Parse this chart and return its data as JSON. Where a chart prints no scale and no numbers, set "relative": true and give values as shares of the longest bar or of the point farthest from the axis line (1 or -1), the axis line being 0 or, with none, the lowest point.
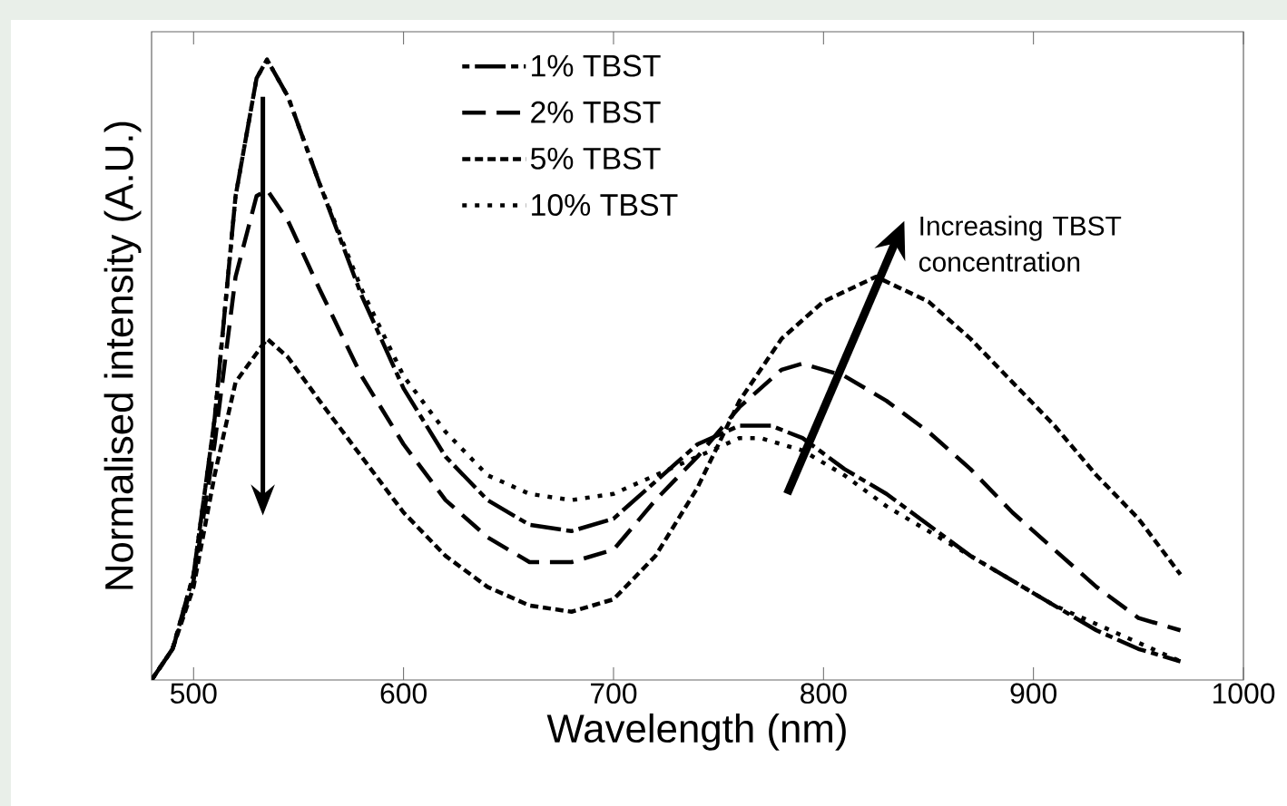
{
  "chart_data": {
    "type": "line",
    "xlabel": "Wavelength (nm)",
    "ylabel": "Normalised intensity (A.U.)",
    "relative": true,
    "xlim": [
      480,
      1000
    ],
    "xticks": [
      500,
      600,
      700,
      800,
      900,
      1000
    ],
    "legend": "top",
    "grid": false,
    "marker": "none",
    "annotations": [
      "Increasing TBST concentration"
    ],
    "series": [
      {
        "name": "1% TBST",
        "color": "#000000",
        "line_style": "dashdot",
        "x": [
          480,
          490,
          500,
          510,
          520,
          530,
          535,
          545,
          560,
          580,
          600,
          620,
          640,
          660,
          680,
          700,
          720,
          740,
          760,
          775,
          790,
          810,
          830,
          850,
          870,
          890,
          910,
          930,
          950,
          970
        ],
        "values": [
          0,
          0.05,
          0.17,
          0.42,
          0.78,
          0.97,
          1.0,
          0.94,
          0.8,
          0.62,
          0.47,
          0.36,
          0.29,
          0.25,
          0.24,
          0.26,
          0.32,
          0.38,
          0.41,
          0.41,
          0.39,
          0.34,
          0.3,
          0.25,
          0.2,
          0.16,
          0.12,
          0.08,
          0.05,
          0.03
        ]
      },
      {
        "name": "2% TBST",
        "color": "#000000",
        "line_style": "longdashed",
        "x": [
          480,
          490,
          500,
          510,
          520,
          530,
          535,
          545,
          560,
          580,
          600,
          620,
          640,
          660,
          680,
          700,
          720,
          740,
          760,
          780,
          790,
          810,
          830,
          850,
          870,
          890,
          910,
          930,
          950,
          970
        ],
        "values": [
          0,
          0.05,
          0.16,
          0.38,
          0.65,
          0.78,
          0.79,
          0.74,
          0.63,
          0.49,
          0.38,
          0.29,
          0.23,
          0.19,
          0.19,
          0.21,
          0.29,
          0.36,
          0.44,
          0.5,
          0.51,
          0.49,
          0.45,
          0.4,
          0.34,
          0.27,
          0.21,
          0.15,
          0.1,
          0.08
        ]
      },
      {
        "name": "5% TBST",
        "color": "#000000",
        "line_style": "dashed",
        "x": [
          480,
          490,
          500,
          510,
          520,
          535,
          545,
          560,
          580,
          600,
          620,
          640,
          660,
          680,
          700,
          720,
          740,
          760,
          780,
          800,
          825,
          850,
          870,
          890,
          910,
          930,
          950,
          970
        ],
        "values": [
          0,
          0.05,
          0.15,
          0.33,
          0.48,
          0.55,
          0.52,
          0.45,
          0.36,
          0.27,
          0.2,
          0.15,
          0.12,
          0.11,
          0.13,
          0.2,
          0.31,
          0.45,
          0.55,
          0.61,
          0.65,
          0.61,
          0.55,
          0.48,
          0.41,
          0.33,
          0.26,
          0.17
        ]
      },
      {
        "name": "10% TBST",
        "color": "#000000",
        "line_style": "dotted",
        "x": [
          480,
          490,
          500,
          510,
          520,
          530,
          535,
          545,
          560,
          580,
          600,
          620,
          640,
          660,
          680,
          700,
          720,
          740,
          760,
          770,
          790,
          810,
          830,
          850,
          870,
          890,
          910,
          930,
          950,
          970
        ],
        "values": [
          0,
          0.05,
          0.17,
          0.42,
          0.78,
          0.97,
          1.0,
          0.94,
          0.8,
          0.63,
          0.49,
          0.4,
          0.33,
          0.3,
          0.29,
          0.3,
          0.33,
          0.36,
          0.39,
          0.39,
          0.37,
          0.33,
          0.28,
          0.24,
          0.2,
          0.16,
          0.12,
          0.09,
          0.06,
          0.03
        ]
      }
    ]
  }
}
